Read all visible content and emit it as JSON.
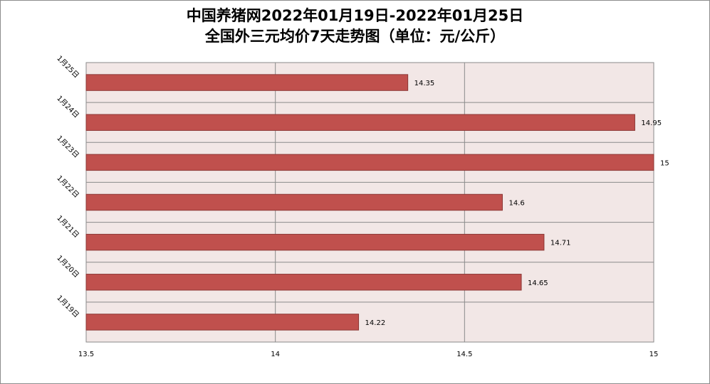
{
  "chart_data": {
    "type": "bar",
    "orientation": "horizontal",
    "title": [
      "中国养猪网2022年01月19日-2022年01月25日",
      "全国外三元均价7天走势图（单位：元/公斤）"
    ],
    "categories": [
      "1月25日",
      "1月24日",
      "1月23日",
      "1月22日",
      "1月21日",
      "1月20日",
      "1月19日"
    ],
    "values": [
      14.35,
      14.95,
      15,
      14.6,
      14.71,
      14.65,
      14.22
    ],
    "value_labels": [
      "14.35",
      "14.95",
      "15",
      "14.6",
      "14.71",
      "14.65",
      "14.22"
    ],
    "xlim": [
      13.5,
      15
    ],
    "xticks": [
      13.5,
      14,
      14.5,
      15
    ],
    "xtick_labels": [
      "13.5",
      "14",
      "14.5",
      "15"
    ],
    "grid": true,
    "legend": "none",
    "colors": {
      "bar_fill": "#c0504d",
      "bar_stroke": "#8c3836",
      "plot_background": "#f2e7e6",
      "grid": "#8a8a8a"
    }
  }
}
